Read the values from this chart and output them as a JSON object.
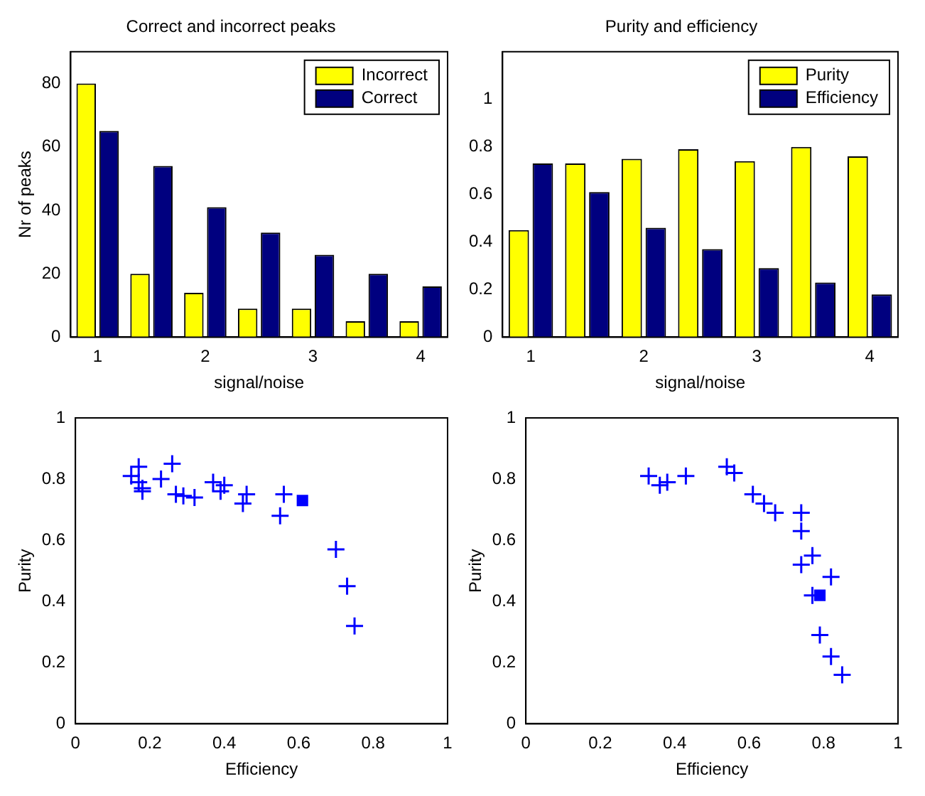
{
  "chart_data": [
    {
      "type": "bar",
      "title": "Correct and incorrect peaks",
      "xlabel": "signal/noise",
      "ylabel": "Nr of peaks",
      "categories": [
        "1",
        null,
        "2",
        null,
        "3",
        null,
        "4"
      ],
      "ylim": [
        0,
        90
      ],
      "yticks": [
        0,
        20,
        40,
        60,
        80
      ],
      "grid": false,
      "legend": "top right",
      "series": [
        {
          "name": "Incorrect",
          "color": "#ffff00",
          "values": [
            80,
            20,
            14,
            9,
            9,
            5,
            5
          ]
        },
        {
          "name": "Correct",
          "color": "#00007f",
          "values": [
            65,
            54,
            41,
            33,
            26,
            20,
            16
          ]
        }
      ]
    },
    {
      "type": "bar",
      "title": "Purity and efficiency",
      "xlabel": "signal/noise",
      "categories": [
        "1",
        null,
        "2",
        null,
        "3",
        null,
        "4"
      ],
      "ylim": [
        0,
        1.2
      ],
      "yticks": [
        0,
        0.2,
        0.4,
        0.6,
        0.8,
        1
      ],
      "grid": false,
      "legend": "top right",
      "series": [
        {
          "name": "Purity",
          "color": "#ffff00",
          "values": [
            0.45,
            0.73,
            0.75,
            0.79,
            0.74,
            0.8,
            0.76
          ]
        },
        {
          "name": "Efficiency",
          "color": "#00007f",
          "values": [
            0.73,
            0.61,
            0.46,
            0.37,
            0.29,
            0.23,
            0.18
          ]
        }
      ]
    },
    {
      "type": "scatter",
      "xlabel": "Efficiency",
      "ylabel": "Purity",
      "xlim": [
        0,
        1
      ],
      "xticks": [
        0,
        0.2,
        0.4,
        0.6,
        0.8,
        1
      ],
      "ylim": [
        0,
        1
      ],
      "yticks": [
        0,
        0.2,
        0.4,
        0.6,
        0.8,
        1
      ],
      "grid": false,
      "series": [
        {
          "color": "#0000ff",
          "marker": "cross",
          "x": [
            0.15,
            0.17,
            0.17,
            0.18,
            0.18,
            0.23,
            0.26,
            0.27,
            0.29,
            0.32,
            0.37,
            0.39,
            0.4,
            0.45,
            0.46,
            0.55,
            0.56,
            0.7,
            0.73,
            0.75
          ],
          "values": [
            0.81,
            0.84,
            0.79,
            0.77,
            0.76,
            0.8,
            0.85,
            0.75,
            0.745,
            0.74,
            0.79,
            0.76,
            0.78,
            0.72,
            0.75,
            0.68,
            0.75,
            0.57,
            0.45,
            0.32
          ]
        },
        {
          "color": "#0000ff",
          "marker": "square",
          "x": [
            0.61
          ],
          "values": [
            0.73
          ]
        }
      ]
    },
    {
      "type": "scatter",
      "xlabel": "Efficiency",
      "ylabel": "Purity",
      "xlim": [
        0,
        1
      ],
      "xticks": [
        0,
        0.2,
        0.4,
        0.6,
        0.8,
        1
      ],
      "ylim": [
        0,
        1
      ],
      "yticks": [
        0,
        0.2,
        0.4,
        0.6,
        0.8,
        1
      ],
      "grid": false,
      "series": [
        {
          "color": "#0000ff",
          "marker": "cross",
          "x": [
            0.33,
            0.36,
            0.38,
            0.43,
            0.54,
            0.56,
            0.61,
            0.64,
            0.67,
            0.74,
            0.74,
            0.74,
            0.77,
            0.77,
            0.82,
            0.79,
            0.82,
            0.85
          ],
          "values": [
            0.81,
            0.78,
            0.79,
            0.81,
            0.84,
            0.82,
            0.75,
            0.72,
            0.69,
            0.69,
            0.63,
            0.52,
            0.55,
            0.42,
            0.48,
            0.29,
            0.22,
            0.16
          ]
        },
        {
          "color": "#0000ff",
          "marker": "square",
          "x": [
            0.79
          ],
          "values": [
            0.42
          ]
        }
      ]
    }
  ]
}
